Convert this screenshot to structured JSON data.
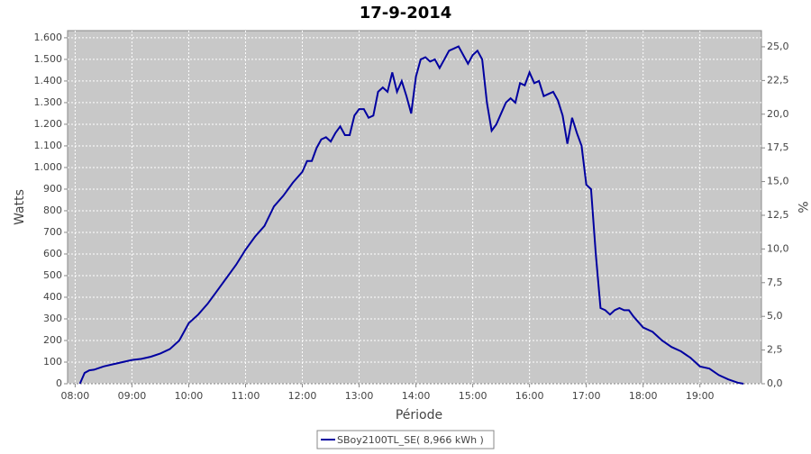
{
  "chart_data": {
    "type": "line",
    "title": "17-9-2014",
    "x_label": "Période",
    "y_label": "Watts",
    "y2_label": "%",
    "x": [
      "08:05",
      "08:10",
      "08:15",
      "08:20",
      "08:30",
      "08:40",
      "08:50",
      "09:00",
      "09:10",
      "09:20",
      "09:30",
      "09:40",
      "09:50",
      "10:00",
      "10:10",
      "10:20",
      "10:30",
      "10:40",
      "10:50",
      "11:00",
      "11:10",
      "11:20",
      "11:30",
      "11:40",
      "11:50",
      "12:00",
      "12:05",
      "12:10",
      "12:15",
      "12:20",
      "12:25",
      "12:30",
      "12:35",
      "12:40",
      "12:45",
      "12:50",
      "12:55",
      "13:00",
      "13:05",
      "13:10",
      "13:15",
      "13:20",
      "13:25",
      "13:30",
      "13:35",
      "13:40",
      "13:45",
      "13:50",
      "13:55",
      "14:00",
      "14:05",
      "14:10",
      "14:15",
      "14:20",
      "14:25",
      "14:30",
      "14:35",
      "14:40",
      "14:45",
      "14:50",
      "14:55",
      "15:00",
      "15:05",
      "15:10",
      "15:15",
      "15:20",
      "15:25",
      "15:30",
      "15:35",
      "15:40",
      "15:45",
      "15:50",
      "15:55",
      "16:00",
      "16:05",
      "16:10",
      "16:15",
      "16:20",
      "16:25",
      "16:30",
      "16:35",
      "16:40",
      "16:45",
      "16:50",
      "16:55",
      "17:00",
      "17:05",
      "17:10",
      "17:15",
      "17:20",
      "17:25",
      "17:30",
      "17:35",
      "17:40",
      "17:45",
      "17:50",
      "18:00",
      "18:10",
      "18:20",
      "18:30",
      "18:40",
      "18:50",
      "19:00",
      "19:10",
      "19:20",
      "19:30",
      "19:40",
      "19:46"
    ],
    "series": [
      {
        "name": "SBoy2100TL_SE( 8,966 kWh )",
        "color": "#0000a0",
        "values": [
          0,
          50,
          62,
          65,
          80,
          90,
          100,
          110,
          115,
          125,
          140,
          160,
          200,
          280,
          320,
          370,
          430,
          490,
          550,
          620,
          680,
          730,
          820,
          870,
          930,
          980,
          1030,
          1030,
          1090,
          1130,
          1140,
          1120,
          1160,
          1190,
          1150,
          1150,
          1240,
          1270,
          1270,
          1230,
          1240,
          1350,
          1370,
          1350,
          1440,
          1350,
          1400,
          1330,
          1250,
          1420,
          1500,
          1510,
          1490,
          1500,
          1460,
          1500,
          1540,
          1550,
          1560,
          1520,
          1480,
          1520,
          1540,
          1500,
          1300,
          1170,
          1200,
          1250,
          1300,
          1320,
          1300,
          1390,
          1380,
          1440,
          1390,
          1400,
          1330,
          1340,
          1350,
          1310,
          1240,
          1110,
          1230,
          1160,
          1100,
          920,
          900,
          600,
          350,
          340,
          320,
          340,
          350,
          340,
          340,
          310,
          260,
          240,
          200,
          170,
          150,
          120,
          80,
          70,
          40,
          20,
          5,
          0
        ]
      }
    ],
    "xlim": [
      "07:52",
      "20:05"
    ],
    "xticks": [
      "08:00",
      "09:00",
      "10:00",
      "11:00",
      "12:00",
      "13:00",
      "14:00",
      "15:00",
      "16:00",
      "17:00",
      "18:00",
      "19:00"
    ],
    "ylim": [
      0,
      1633
    ],
    "yticks": [
      0,
      100,
      200,
      300,
      400,
      500,
      600,
      700,
      800,
      900,
      {
        "value": 1000,
        "label": "1.000"
      },
      {
        "value": 1100,
        "label": "1.100"
      },
      {
        "value": 1200,
        "label": "1.200"
      },
      {
        "value": 1300,
        "label": "1.300"
      },
      {
        "value": 1400,
        "label": "1.400"
      },
      {
        "value": 1500,
        "label": "1.500"
      },
      {
        "value": 1600,
        "label": "1.600"
      }
    ],
    "y2lim": [
      0,
      26.2
    ],
    "y2ticks": [
      {
        "value": 0,
        "label": "0,0"
      },
      {
        "value": 2.5,
        "label": "2,5"
      },
      {
        "value": 5,
        "label": "5,0"
      },
      {
        "value": 7.5,
        "label": "7,5"
      },
      {
        "value": 10,
        "label": "10,0"
      },
      {
        "value": 12.5,
        "label": "12,5"
      },
      {
        "value": 15,
        "label": "15,0"
      },
      {
        "value": 17.5,
        "label": "17,5"
      },
      {
        "value": 20,
        "label": "20,0"
      },
      {
        "value": 22.5,
        "label": "22,5"
      },
      {
        "value": 25,
        "label": "25,0"
      }
    ],
    "grid": true
  }
}
